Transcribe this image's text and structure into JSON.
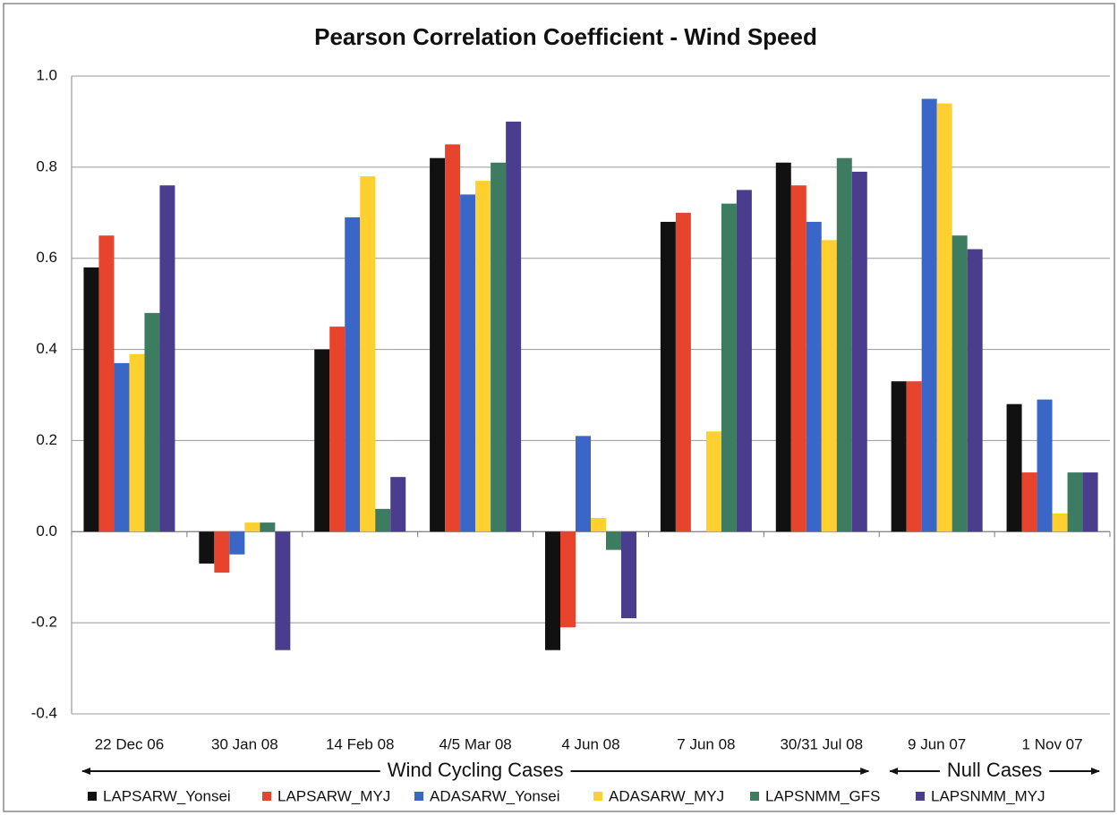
{
  "chart_data": {
    "type": "bar",
    "title": "Pearson Correlation Coefficient - Wind Speed",
    "categories": [
      "22 Dec 06",
      "30 Jan 08",
      "14 Feb 08",
      "4/5 Mar 08",
      "4 Jun 08",
      "7 Jun 08",
      "30/31 Jul 08",
      "9 Jun 07",
      "1 Nov 07"
    ],
    "series": [
      {
        "name": "LAPSARW_Yonsei",
        "color": "#111111",
        "values": [
          0.58,
          -0.07,
          0.4,
          0.82,
          -0.26,
          0.68,
          0.81,
          0.33,
          0.28
        ]
      },
      {
        "name": "LAPSARW_MYJ",
        "color": "#e8432d",
        "values": [
          0.65,
          -0.09,
          0.45,
          0.85,
          -0.21,
          0.7,
          0.76,
          0.33,
          0.13
        ]
      },
      {
        "name": "ADASARW_Yonsei",
        "color": "#3a66c8",
        "values": [
          0.37,
          -0.05,
          0.69,
          0.74,
          0.21,
          null,
          0.68,
          0.95,
          0.29
        ]
      },
      {
        "name": "ADASARW_MYJ",
        "color": "#ffd030",
        "values": [
          0.39,
          0.02,
          0.78,
          0.77,
          0.03,
          0.22,
          0.64,
          0.94,
          0.04
        ]
      },
      {
        "name": "LAPSNMM_GFS",
        "color": "#3e7c62",
        "values": [
          0.48,
          0.02,
          0.05,
          0.81,
          -0.04,
          0.72,
          0.82,
          0.65,
          0.13
        ]
      },
      {
        "name": "LAPSNMM_MYJ",
        "color": "#4a3d8e",
        "values": [
          0.76,
          -0.26,
          0.12,
          0.9,
          -0.19,
          0.75,
          0.79,
          0.62,
          0.13
        ]
      }
    ],
    "ylim": [
      -0.4,
      1.0
    ],
    "yticks": [
      {
        "value": -0.4,
        "label": "-0.4"
      },
      {
        "value": -0.2,
        "label": "-0.2"
      },
      {
        "value": 0,
        "label": "0.0"
      },
      0.2,
      0.4,
      0.6,
      0.8,
      {
        "value": 1,
        "label": "1.0"
      }
    ],
    "grid": true,
    "annotations": [
      "Wind Cycling Cases",
      "Null Cases"
    ],
    "legend": "bottom"
  }
}
